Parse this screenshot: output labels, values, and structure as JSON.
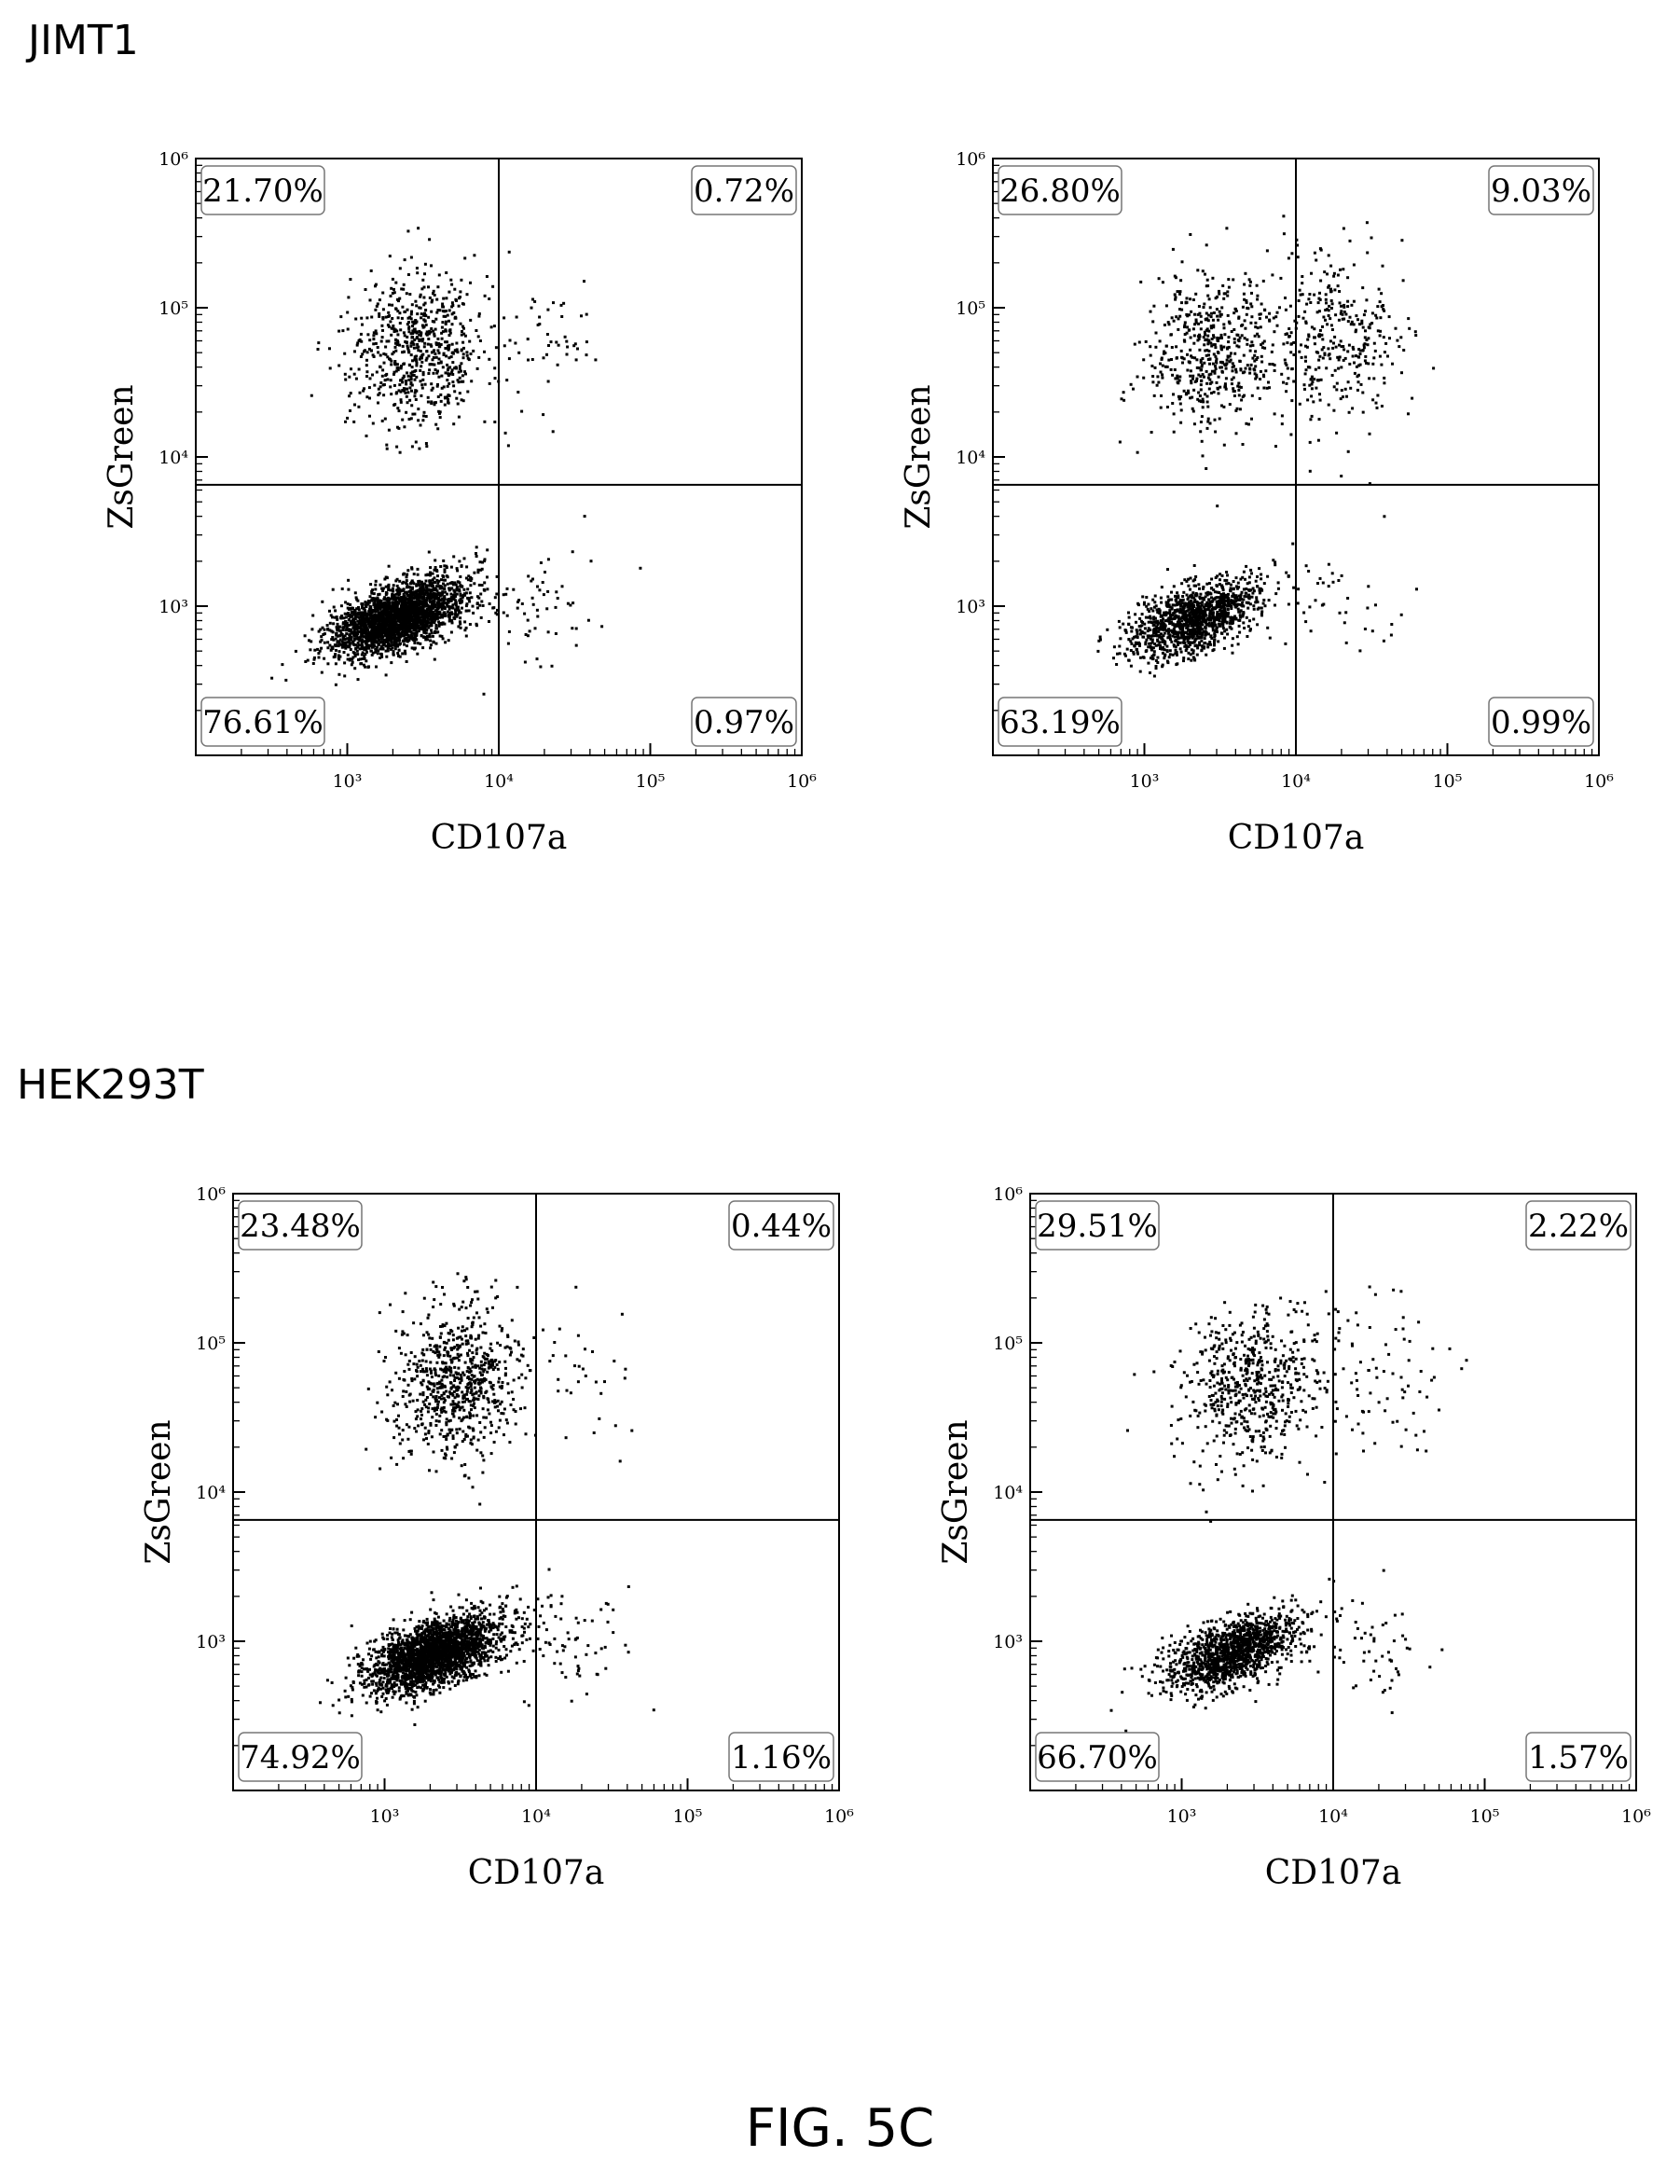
{
  "figure": {
    "caption": "FIG. 5C",
    "sections": [
      {
        "title": "JIMT1"
      },
      {
        "title": "HEK293T"
      }
    ]
  },
  "chart_data": [
    {
      "type": "scatter",
      "section": "JIMT1",
      "xlabel": "CD107a",
      "ylabel": "ZsGreen",
      "x_scale": "log",
      "y_scale": "log",
      "xlim": [
        100,
        1000000
      ],
      "ylim": [
        100,
        1000000
      ],
      "x_ticks": [
        "10³",
        "10⁴",
        "10⁵",
        "10⁶"
      ],
      "y_ticks": [
        "10³",
        "10⁴",
        "10⁵",
        "10⁶"
      ],
      "gate": {
        "x": 10000,
        "y": 6500
      },
      "quadrants": {
        "upper_left": "21.70%",
        "upper_right": "0.72%",
        "lower_left": "76.61%",
        "lower_right": "0.97%"
      }
    },
    {
      "type": "scatter",
      "section": "JIMT1",
      "xlabel": "CD107a",
      "ylabel": "ZsGreen",
      "x_scale": "log",
      "y_scale": "log",
      "xlim": [
        100,
        1000000
      ],
      "ylim": [
        100,
        1000000
      ],
      "x_ticks": [
        "10³",
        "10⁴",
        "10⁵",
        "10⁶"
      ],
      "y_ticks": [
        "10³",
        "10⁴",
        "10⁵",
        "10⁶"
      ],
      "gate": {
        "x": 10000,
        "y": 6500
      },
      "quadrants": {
        "upper_left": "26.80%",
        "upper_right": "9.03%",
        "lower_left": "63.19%",
        "lower_right": "0.99%"
      }
    },
    {
      "type": "scatter",
      "section": "HEK293T",
      "xlabel": "CD107a",
      "ylabel": "ZsGreen",
      "x_scale": "log",
      "y_scale": "log",
      "xlim": [
        100,
        1000000
      ],
      "ylim": [
        100,
        1000000
      ],
      "x_ticks": [
        "10³",
        "10⁴",
        "10⁵",
        "10⁶"
      ],
      "y_ticks": [
        "10³",
        "10⁴",
        "10⁵",
        "10⁶"
      ],
      "gate": {
        "x": 10000,
        "y": 6500
      },
      "quadrants": {
        "upper_left": "23.48%",
        "upper_right": "0.44%",
        "lower_left": "74.92%",
        "lower_right": "1.16%"
      }
    },
    {
      "type": "scatter",
      "section": "HEK293T",
      "xlabel": "CD107a",
      "ylabel": "ZsGreen",
      "x_scale": "log",
      "y_scale": "log",
      "xlim": [
        100,
        1000000
      ],
      "ylim": [
        100,
        1000000
      ],
      "x_ticks": [
        "10³",
        "10⁴",
        "10⁵",
        "10⁶"
      ],
      "y_ticks": [
        "10³",
        "10⁴",
        "10⁵",
        "10⁶"
      ],
      "gate": {
        "x": 10000,
        "y": 6500
      },
      "quadrants": {
        "upper_left": "29.51%",
        "upper_right": "2.22%",
        "lower_left": "66.70%",
        "lower_right": "1.57%"
      }
    }
  ]
}
